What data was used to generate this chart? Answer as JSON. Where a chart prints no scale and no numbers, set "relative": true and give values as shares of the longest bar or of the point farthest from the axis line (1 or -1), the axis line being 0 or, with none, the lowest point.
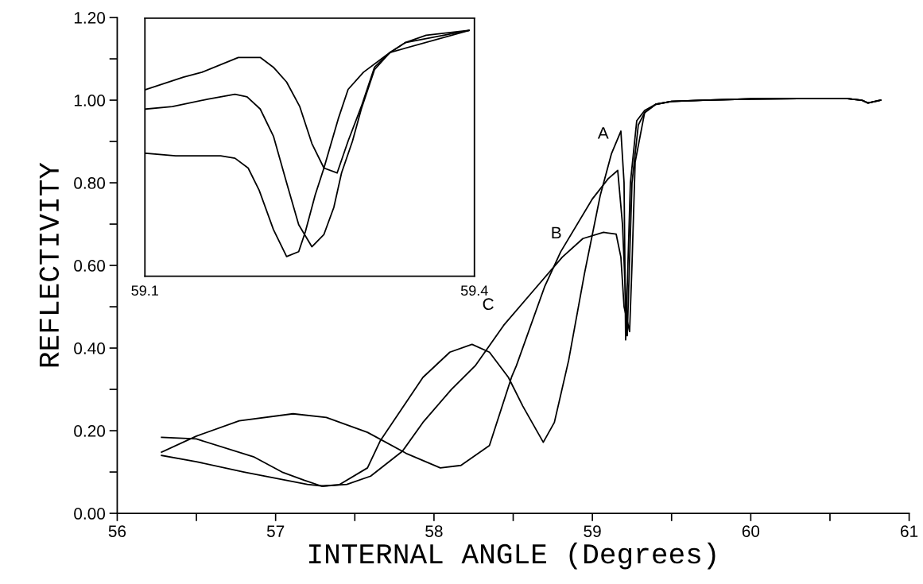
{
  "chart_data": [
    {
      "type": "line",
      "xlabel": "INTERNAL ANGLE (Degrees)",
      "ylabel": "REFLECTIVITY",
      "xlim": [
        56,
        61
      ],
      "ylim": [
        0,
        1.2
      ],
      "xticks": [
        56,
        {
          "value": 56.5,
          "label": null
        },
        57,
        {
          "value": 57.5,
          "label": null
        },
        58,
        {
          "value": 58.5,
          "label": null
        },
        59,
        {
          "value": 59.5,
          "label": null
        },
        60,
        {
          "value": 60.5,
          "label": null
        },
        61
      ],
      "yticks": [
        {
          "value": 0,
          "label": "0.00"
        },
        {
          "value": 0.1,
          "label": null
        },
        {
          "value": 0.2,
          "label": "0.20"
        },
        {
          "value": 0.3,
          "label": null
        },
        {
          "value": 0.4,
          "label": "0.40"
        },
        {
          "value": 0.5,
          "label": null
        },
        {
          "value": 0.6,
          "label": "0.60"
        },
        {
          "value": 0.7,
          "label": null
        },
        {
          "value": 0.8,
          "label": "0.80"
        },
        {
          "value": 0.9,
          "label": null
        },
        {
          "value": 1.0,
          "label": "1.00"
        },
        {
          "value": 1.1,
          "label": null
        },
        {
          "value": 1.2,
          "label": "1.20"
        }
      ],
      "grid": false,
      "legend": false,
      "marker": "none",
      "line_style": "solid",
      "series": [
        {
          "name": "A",
          "color": "#000000",
          "x": [
            56.28,
            56.5,
            56.86,
            57.04,
            57.18,
            57.29,
            57.4,
            57.58,
            57.66,
            57.93,
            58.1,
            58.24,
            58.35,
            58.47,
            58.56,
            58.69,
            58.76,
            58.85,
            58.95,
            59.05,
            59.12,
            59.18,
            59.2,
            59.21,
            59.24,
            59.28,
            59.33,
            59.4,
            59.5,
            59.7,
            60.0,
            60.3,
            60.6,
            60.7,
            60.74,
            60.82
          ],
          "values": [
            0.184,
            0.18,
            0.137,
            0.1,
            0.08,
            0.066,
            0.069,
            0.11,
            0.175,
            0.329,
            0.39,
            0.409,
            0.39,
            0.329,
            0.26,
            0.172,
            0.22,
            0.37,
            0.58,
            0.77,
            0.87,
            0.925,
            0.8,
            0.42,
            0.8,
            0.95,
            0.975,
            0.99,
            0.997,
            1.0,
            1.003,
            1.004,
            1.004,
            1.0,
            0.993,
            1.0
          ]
        },
        {
          "name": "B",
          "color": "#000000",
          "x": [
            56.28,
            56.5,
            56.77,
            57.11,
            57.32,
            57.58,
            57.83,
            58.04,
            58.17,
            58.35,
            58.49,
            58.52,
            58.7,
            58.8,
            59.0,
            59.1,
            59.16,
            59.19,
            59.22,
            59.25,
            59.29,
            59.33,
            59.4,
            59.5,
            59.7,
            60.0,
            60.3,
            60.6,
            60.7,
            60.74,
            60.82
          ],
          "values": [
            0.148,
            0.187,
            0.224,
            0.241,
            0.232,
            0.196,
            0.144,
            0.11,
            0.116,
            0.164,
            0.33,
            0.357,
            0.55,
            0.633,
            0.761,
            0.81,
            0.83,
            0.7,
            0.43,
            0.8,
            0.94,
            0.97,
            0.99,
            0.997,
            1.0,
            1.003,
            1.004,
            1.004,
            1.0,
            0.993,
            1.0
          ]
        },
        {
          "name": "C",
          "color": "#000000",
          "x": [
            56.28,
            56.5,
            56.8,
            57.0,
            57.2,
            57.3,
            57.45,
            57.6,
            57.8,
            57.93,
            58.11,
            58.26,
            58.44,
            58.63,
            58.81,
            58.94,
            59.07,
            59.15,
            59.18,
            59.2,
            59.235,
            59.25,
            59.27,
            59.33,
            59.4,
            59.5,
            59.7,
            60.0,
            60.3,
            60.6,
            60.7,
            60.74,
            60.82
          ],
          "values": [
            0.14,
            0.125,
            0.1,
            0.085,
            0.07,
            0.066,
            0.07,
            0.09,
            0.15,
            0.22,
            0.3,
            0.357,
            0.455,
            0.54,
            0.62,
            0.665,
            0.68,
            0.676,
            0.62,
            0.5,
            0.44,
            0.6,
            0.85,
            0.97,
            0.99,
            0.997,
            1.0,
            1.003,
            1.004,
            1.004,
            1.0,
            0.993,
            1.0
          ]
        }
      ]
    },
    {
      "type": "line",
      "relative": true,
      "xlim": [
        59.1,
        59.4
      ],
      "xticks": [
        59.1,
        59.4
      ],
      "tick_labels": "x",
      "grid": false,
      "marker": "none",
      "line_style": "solid",
      "series": [
        {
          "color": "#000000",
          "x": [
            59.101,
            59.135,
            59.152,
            59.185,
            59.195,
            59.205,
            59.217,
            59.229,
            59.241,
            59.252,
            59.263,
            59.275,
            59.285,
            59.297,
            59.309,
            59.323,
            59.337,
            59.356,
            59.395
          ],
          "values": [
            0.76,
            0.81,
            0.83,
            0.89,
            0.89,
            0.89,
            0.85,
            0.79,
            0.69,
            0.54,
            0.44,
            0.42,
            0.55,
            0.69,
            0.85,
            0.91,
            0.95,
            0.98,
            1.0
          ]
        },
        {
          "color": "#000000",
          "x": [
            59.101,
            59.125,
            59.157,
            59.182,
            59.193,
            59.205,
            59.217,
            59.229,
            59.24,
            59.252,
            59.263,
            59.272,
            59.279,
            59.289,
            59.297,
            59.309,
            59.323,
            59.395
          ],
          "values": [
            0.68,
            0.69,
            0.72,
            0.74,
            0.73,
            0.68,
            0.57,
            0.38,
            0.21,
            0.12,
            0.17,
            0.28,
            0.42,
            0.55,
            0.68,
            0.84,
            0.91,
            1.0
          ]
        },
        {
          "color": "#000000",
          "x": [
            59.101,
            59.128,
            59.169,
            59.182,
            59.194,
            59.204,
            59.217,
            59.229,
            59.24,
            59.246,
            59.255,
            59.263,
            59.276,
            59.285,
            59.299,
            59.32,
            59.337,
            59.395
          ],
          "values": [
            0.5,
            0.49,
            0.49,
            0.48,
            0.44,
            0.35,
            0.19,
            0.08,
            0.1,
            0.18,
            0.33,
            0.44,
            0.64,
            0.76,
            0.83,
            0.9,
            0.95,
            1.0
          ]
        }
      ]
    }
  ]
}
